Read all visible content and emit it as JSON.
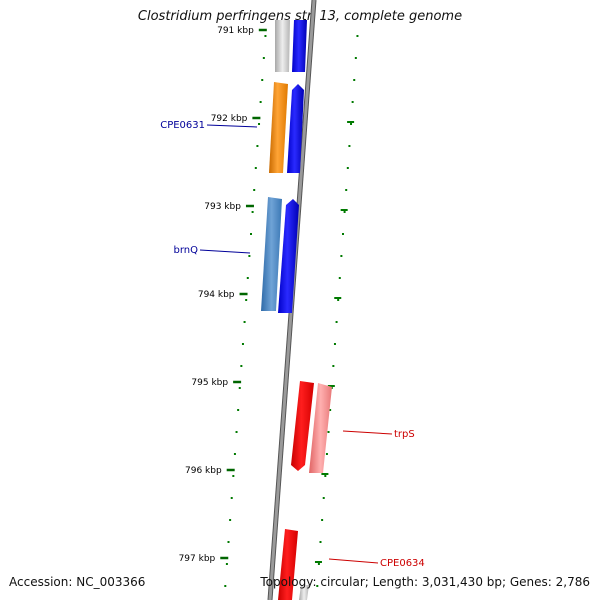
{
  "header": {
    "title": "Clostridium perfringens str. 13, complete genome"
  },
  "footer": {
    "accession": "Accession: NC_003366",
    "summary": "Topology: circular; Length: 3,031,430 bp; Genes: 2,786"
  },
  "ruler": {
    "ticks": [
      {
        "label": "791 kbp",
        "kbp": 791
      },
      {
        "label": "792 kbp",
        "kbp": 792
      },
      {
        "label": "793 kbp",
        "kbp": 793
      },
      {
        "label": "794 kbp",
        "kbp": 794
      },
      {
        "label": "795 kbp",
        "kbp": 795
      },
      {
        "label": "796 kbp",
        "kbp": 796
      },
      {
        "label": "797 kbp",
        "kbp": 797
      }
    ]
  },
  "genes": [
    {
      "name": "CPE0631",
      "color": "#000099",
      "start_kbp": 791.92,
      "end_kbp": 792.28
    },
    {
      "name": "brnQ",
      "color": "#000099",
      "start_kbp": 792.93,
      "end_kbp": 793.6
    },
    {
      "name": "trpS",
      "color": "#cc0000",
      "start_kbp": 795.43,
      "end_kbp": 795.6
    },
    {
      "name": "CPE0634",
      "color": "#cc0000",
      "start_kbp": 796.72,
      "end_kbp": 797.2
    }
  ],
  "legend_colors": {
    "cds_forward": "#0000ee",
    "cds_reverse": "#ee0000",
    "gene_orange": "#f58a0b",
    "gene_steelblue": "#4a86c0",
    "gene_pink": "#f08080",
    "ticks": "#008000"
  }
}
